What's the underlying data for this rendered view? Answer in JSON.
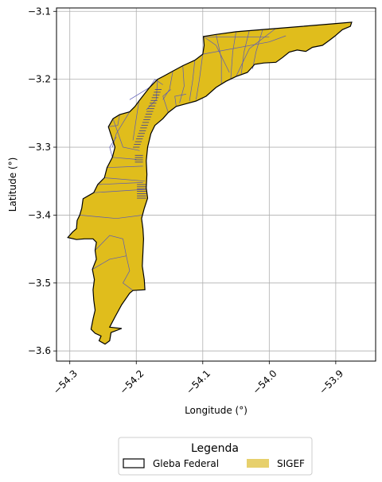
{
  "chart_data": {
    "type": "map",
    "xlabel": "Longitude (°)",
    "ylabel": "Latitude (°)",
    "xlim": [
      -54.32,
      -53.84
    ],
    "ylim": [
      -3.615,
      -3.095
    ],
    "xticks": [
      -54.3,
      -54.2,
      -54.1,
      -54.0,
      -53.9
    ],
    "xtick_labels": [
      "−54.3",
      "−54.2",
      "−54.1",
      "−54.0",
      "−53.9"
    ],
    "yticks": [
      -3.1,
      -3.2,
      -3.3,
      -3.4,
      -3.5,
      -3.6
    ],
    "ytick_labels": [
      "−3.1",
      "−3.2",
      "−3.3",
      "−3.4",
      "−3.5",
      "−3.6"
    ],
    "grid": true,
    "legend": {
      "title": "Legenda",
      "placement": "bottom-center",
      "entries": [
        {
          "label": "Gleba Federal",
          "style": "outline",
          "color": "#000000"
        },
        {
          "label": "SIGEF",
          "style": "fill",
          "color": "#e7d06c"
        }
      ]
    },
    "colors": {
      "fill": "#e0bd1c",
      "parcel_lines": "#5a5ab8",
      "outline": "#000000",
      "grid": "#b0b0b0"
    },
    "gleba_outline": [
      [
        -54.303,
        -3.433
      ],
      [
        -54.296,
        -3.425
      ],
      [
        -54.29,
        -3.42
      ],
      [
        -54.289,
        -3.408
      ],
      [
        -54.285,
        -3.4
      ],
      [
        -54.282,
        -3.39
      ],
      [
        -54.28,
        -3.376
      ],
      [
        -54.264,
        -3.367
      ],
      [
        -54.258,
        -3.355
      ],
      [
        -54.248,
        -3.345
      ],
      [
        -54.244,
        -3.33
      ],
      [
        -54.236,
        -3.315
      ],
      [
        -54.232,
        -3.3
      ],
      [
        -54.237,
        -3.285
      ],
      [
        -54.242,
        -3.27
      ],
      [
        -54.235,
        -3.258
      ],
      [
        -54.225,
        -3.252
      ],
      [
        -54.21,
        -3.248
      ],
      [
        -54.202,
        -3.24
      ],
      [
        -54.196,
        -3.232
      ],
      [
        -54.188,
        -3.222
      ],
      [
        -54.18,
        -3.212
      ],
      [
        -54.168,
        -3.2
      ],
      [
        -54.158,
        -3.195
      ],
      [
        -54.145,
        -3.188
      ],
      [
        -54.13,
        -3.18
      ],
      [
        -54.112,
        -3.172
      ],
      [
        -54.1,
        -3.163
      ],
      [
        -54.098,
        -3.15
      ],
      [
        -54.099,
        -3.137
      ],
      [
        -54.08,
        -3.134
      ],
      [
        -54.05,
        -3.13
      ],
      [
        -54.0,
        -3.126
      ],
      [
        -53.95,
        -3.122
      ],
      [
        -53.9,
        -3.118
      ],
      [
        -53.876,
        -3.116
      ],
      [
        -53.878,
        -3.122
      ],
      [
        -53.89,
        -3.127
      ],
      [
        -53.902,
        -3.137
      ],
      [
        -53.91,
        -3.143
      ],
      [
        -53.92,
        -3.15
      ],
      [
        -53.935,
        -3.153
      ],
      [
        -53.945,
        -3.159
      ],
      [
        -53.958,
        -3.157
      ],
      [
        -53.97,
        -3.16
      ],
      [
        -53.98,
        -3.168
      ],
      [
        -53.99,
        -3.175
      ],
      [
        -54.008,
        -3.176
      ],
      [
        -54.022,
        -3.178
      ],
      [
        -54.033,
        -3.19
      ],
      [
        -54.05,
        -3.196
      ],
      [
        -54.065,
        -3.203
      ],
      [
        -54.08,
        -3.212
      ],
      [
        -54.095,
        -3.225
      ],
      [
        -54.11,
        -3.232
      ],
      [
        -54.125,
        -3.236
      ],
      [
        -54.14,
        -3.24
      ],
      [
        -54.152,
        -3.249
      ],
      [
        -54.16,
        -3.258
      ],
      [
        -54.172,
        -3.268
      ],
      [
        -54.178,
        -3.28
      ],
      [
        -54.183,
        -3.3
      ],
      [
        -54.185,
        -3.32
      ],
      [
        -54.184,
        -3.34
      ],
      [
        -54.185,
        -3.36
      ],
      [
        -54.183,
        -3.375
      ],
      [
        -54.188,
        -3.39
      ],
      [
        -54.192,
        -3.405
      ],
      [
        -54.19,
        -3.42
      ],
      [
        -54.189,
        -3.435
      ],
      [
        -54.19,
        -3.455
      ],
      [
        -54.191,
        -3.475
      ],
      [
        -54.188,
        -3.495
      ],
      [
        -54.187,
        -3.51
      ],
      [
        -54.205,
        -3.511
      ],
      [
        -54.21,
        -3.515
      ],
      [
        -54.222,
        -3.532
      ],
      [
        -54.232,
        -3.55
      ],
      [
        -54.24,
        -3.565
      ],
      [
        -54.222,
        -3.567
      ],
      [
        -54.238,
        -3.573
      ],
      [
        -54.24,
        -3.585
      ],
      [
        -54.247,
        -3.59
      ],
      [
        -54.256,
        -3.585
      ],
      [
        -54.253,
        -3.578
      ],
      [
        -54.262,
        -3.574
      ],
      [
        -54.268,
        -3.568
      ],
      [
        -54.265,
        -3.553
      ],
      [
        -54.262,
        -3.54
      ],
      [
        -54.264,
        -3.525
      ],
      [
        -54.265,
        -3.51
      ],
      [
        -54.263,
        -3.495
      ],
      [
        -54.266,
        -3.48
      ],
      [
        -54.26,
        -3.465
      ],
      [
        -54.262,
        -3.452
      ],
      [
        -54.26,
        -3.44
      ],
      [
        -54.265,
        -3.435
      ],
      [
        -54.278,
        -3.435
      ],
      [
        -54.29,
        -3.436
      ],
      [
        -54.303,
        -3.433
      ]
    ],
    "parcel_boundaries": [
      [
        [
          -54.244,
          -3.33
        ],
        [
          -54.19,
          -3.328
        ]
      ],
      [
        [
          -54.248,
          -3.345
        ],
        [
          -54.187,
          -3.35
        ]
      ],
      [
        [
          -54.264,
          -3.367
        ],
        [
          -54.185,
          -3.362
        ]
      ],
      [
        [
          -54.258,
          -3.355
        ],
        [
          -54.19,
          -3.352
        ]
      ],
      [
        [
          -54.236,
          -3.315
        ],
        [
          -54.2,
          -3.318
        ]
      ],
      [
        [
          -54.235,
          -3.258
        ],
        [
          -54.22,
          -3.3
        ],
        [
          -54.195,
          -3.305
        ]
      ],
      [
        [
          -54.21,
          -3.248
        ],
        [
          -54.23,
          -3.28
        ],
        [
          -54.236,
          -3.3
        ]
      ],
      [
        [
          -54.196,
          -3.232
        ],
        [
          -54.2,
          -3.258
        ],
        [
          -54.205,
          -3.29
        ]
      ],
      [
        [
          -54.18,
          -3.212
        ],
        [
          -54.21,
          -3.23
        ]
      ],
      [
        [
          -54.168,
          -3.2
        ],
        [
          -54.17,
          -3.23
        ],
        [
          -54.185,
          -3.245
        ]
      ],
      [
        [
          -54.145,
          -3.188
        ],
        [
          -54.15,
          -3.215
        ],
        [
          -54.16,
          -3.23
        ]
      ],
      [
        [
          -54.13,
          -3.18
        ],
        [
          -54.128,
          -3.21
        ],
        [
          -54.135,
          -3.235
        ]
      ],
      [
        [
          -54.112,
          -3.172
        ],
        [
          -54.115,
          -3.2
        ],
        [
          -54.12,
          -3.232
        ]
      ],
      [
        [
          -54.1,
          -3.163
        ],
        [
          -54.105,
          -3.2
        ],
        [
          -54.11,
          -3.23
        ]
      ],
      [
        [
          -54.099,
          -3.137
        ],
        [
          -54.08,
          -3.15
        ],
        [
          -54.06,
          -3.19
        ]
      ],
      [
        [
          -54.08,
          -3.134
        ],
        [
          -54.072,
          -3.17
        ],
        [
          -54.072,
          -3.208
        ]
      ],
      [
        [
          -54.05,
          -3.13
        ],
        [
          -54.055,
          -3.16
        ],
        [
          -54.058,
          -3.2
        ]
      ],
      [
        [
          -54.03,
          -3.128
        ],
        [
          -54.038,
          -3.16
        ],
        [
          -54.042,
          -3.192
        ]
      ],
      [
        [
          -54.01,
          -3.127
        ],
        [
          -54.02,
          -3.16
        ],
        [
          -54.025,
          -3.185
        ]
      ],
      [
        [
          -53.99,
          -3.125
        ],
        [
          -54.03,
          -3.155
        ],
        [
          -54.05,
          -3.196
        ]
      ],
      [
        [
          -54.0,
          -3.138
        ],
        [
          -54.095,
          -3.138
        ]
      ],
      [
        [
          -54.1,
          -3.163
        ],
        [
          -54.0,
          -3.145
        ],
        [
          -53.975,
          -3.136
        ]
      ],
      [
        [
          -54.18,
          -3.212
        ],
        [
          -54.172,
          -3.2
        ],
        [
          -54.16,
          -3.208
        ]
      ],
      [
        [
          -54.285,
          -3.4
        ],
        [
          -54.23,
          -3.405
        ],
        [
          -54.19,
          -3.4
        ]
      ],
      [
        [
          -54.262,
          -3.452
        ],
        [
          -54.24,
          -3.43
        ],
        [
          -54.22,
          -3.435
        ],
        [
          -54.215,
          -3.46
        ],
        [
          -54.21,
          -3.482
        ],
        [
          -54.22,
          -3.5
        ],
        [
          -54.205,
          -3.511
        ]
      ],
      [
        [
          -54.266,
          -3.48
        ],
        [
          -54.24,
          -3.465
        ],
        [
          -54.215,
          -3.46
        ]
      ],
      [
        [
          -54.236,
          -3.315
        ],
        [
          -54.24,
          -3.3
        ],
        [
          -54.23,
          -3.285
        ]
      ],
      [
        [
          -54.225,
          -3.252
        ],
        [
          -54.228,
          -3.268
        ],
        [
          -54.242,
          -3.27
        ]
      ],
      [
        [
          -54.152,
          -3.249
        ],
        [
          -54.16,
          -3.225
        ],
        [
          -54.148,
          -3.215
        ]
      ],
      [
        [
          -54.14,
          -3.24
        ],
        [
          -54.142,
          -3.225
        ],
        [
          -54.125,
          -3.222
        ]
      ]
    ],
    "dense_parcel_zones": [
      {
        "from": [
          -54.172,
          -3.215
        ],
        "to": [
          -54.205,
          -3.3
        ],
        "lines": 22,
        "offset": [
          0.01,
          0.0
        ]
      },
      {
        "from": [
          -54.19,
          -3.312
        ],
        "to": [
          -54.19,
          -3.322
        ],
        "lines": 4,
        "offset": [
          -0.012,
          0.0
        ]
      },
      {
        "from": [
          -54.185,
          -3.355
        ],
        "to": [
          -54.185,
          -3.375
        ],
        "lines": 7,
        "offset": [
          -0.014,
          0.0
        ]
      }
    ]
  }
}
